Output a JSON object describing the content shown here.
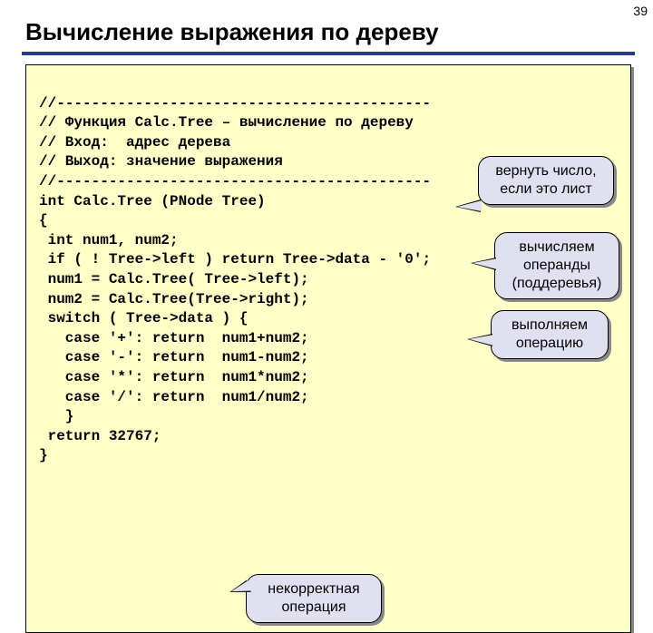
{
  "pageNumber": "39",
  "title": "Вычисление выражения по дереву",
  "code": {
    "lines": [
      "//-------------------------------------------",
      "// Функция Calc.Tree – вычисление по дереву",
      "// Вход:  адрес дерева",
      "// Выход: значение выражения",
      "//-------------------------------------------",
      "int Calc.Tree (PNode Tree)",
      "{",
      " int num1, num2;",
      " if ( ! Tree->left ) return Tree->data - '0';",
      " num1 = Calc.Tree( Tree->left);",
      " num2 = Calc.Tree(Tree->right);",
      " switch ( Tree->data ) {",
      "   case '+': return  num1+num2;",
      "   case '-': return  num1-num2;",
      "   case '*': return  num1*num2;",
      "   case '/': return  num1/num2;",
      "   }",
      " return 32767;",
      "}"
    ]
  },
  "callouts": {
    "c1": "вернуть число, если это лист",
    "c2": "вычисляем операнды (поддеревья)",
    "c3": "выполняем операцию",
    "c4": "некорректная операция"
  },
  "styles": {
    "background": "#ffffff",
    "codeBg": "#ffffc8",
    "calloutBg": "#e0e0f0",
    "underlineColor": "#2a3b8f",
    "shadowColor": "#888888",
    "codeFontFamily": "Courier New",
    "titleFontSize": 26,
    "codeFontSize": 16,
    "calloutFontSize": 16
  }
}
